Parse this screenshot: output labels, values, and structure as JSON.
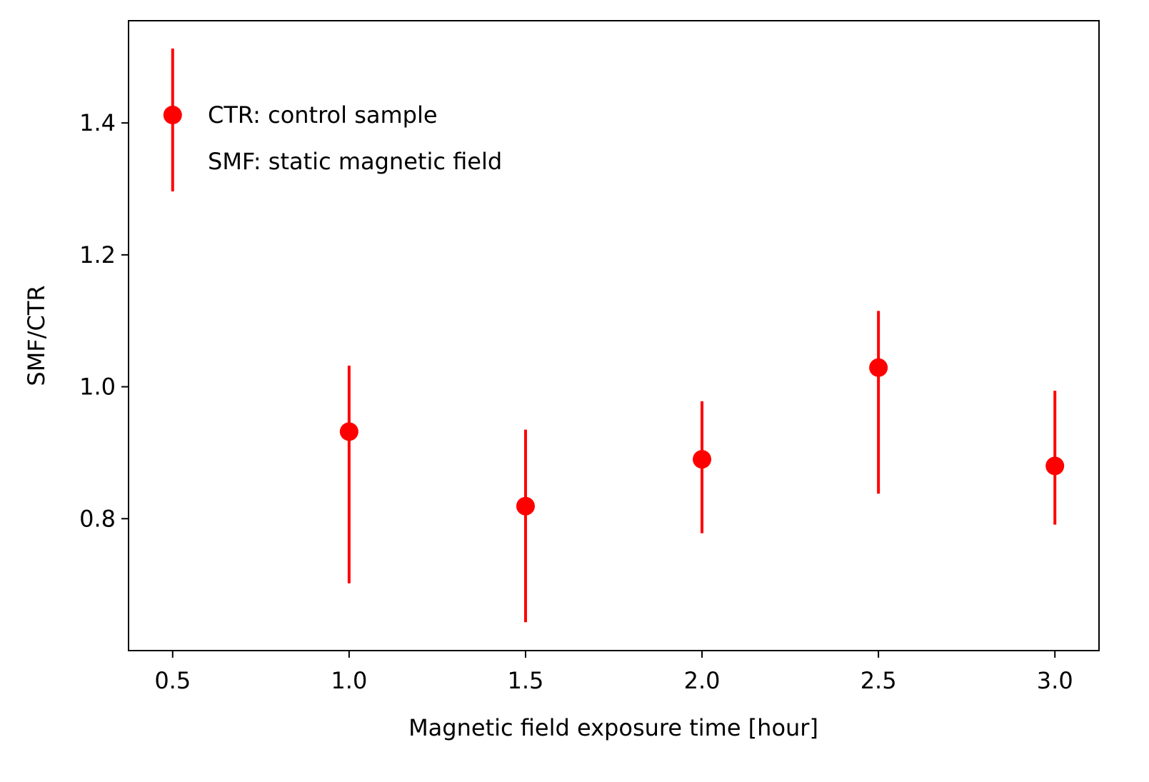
{
  "chart_data": {
    "type": "scatter",
    "xlabel": "Magnetic field exposure time [hour]",
    "ylabel": "SMF/CTR",
    "xlim": [
      0.375,
      3.125
    ],
    "ylim": [
      0.6,
      1.555
    ],
    "x_ticks": [
      0.5,
      1.0,
      1.5,
      2.0,
      2.5,
      3.0
    ],
    "x_tick_labels": [
      "0.5",
      "1.0",
      "1.5",
      "2.0",
      "2.5",
      "3.0"
    ],
    "y_ticks": [
      0.8,
      1.0,
      1.2,
      1.4
    ],
    "y_tick_labels": [
      "0.8",
      "1.0",
      "1.2",
      "1.4"
    ],
    "grid": false,
    "legend": {
      "placement": "top-left",
      "entries": [
        "CTR: control sample",
        "SMF: static magnetic field"
      ]
    },
    "series": [
      {
        "color": "#ff0000",
        "marker": "circle",
        "error_bars": true,
        "points": [
          {
            "x": 1.0,
            "y": 0.932,
            "err_low": 0.702,
            "err_high": 1.032
          },
          {
            "x": 1.5,
            "y": 0.819,
            "err_low": 0.643,
            "err_high": 0.935
          },
          {
            "x": 2.0,
            "y": 0.89,
            "err_low": 0.778,
            "err_high": 0.978
          },
          {
            "x": 2.5,
            "y": 1.029,
            "err_low": 0.838,
            "err_high": 1.115
          },
          {
            "x": 3.0,
            "y": 0.88,
            "err_low": 0.791,
            "err_high": 0.994
          }
        ]
      }
    ]
  }
}
